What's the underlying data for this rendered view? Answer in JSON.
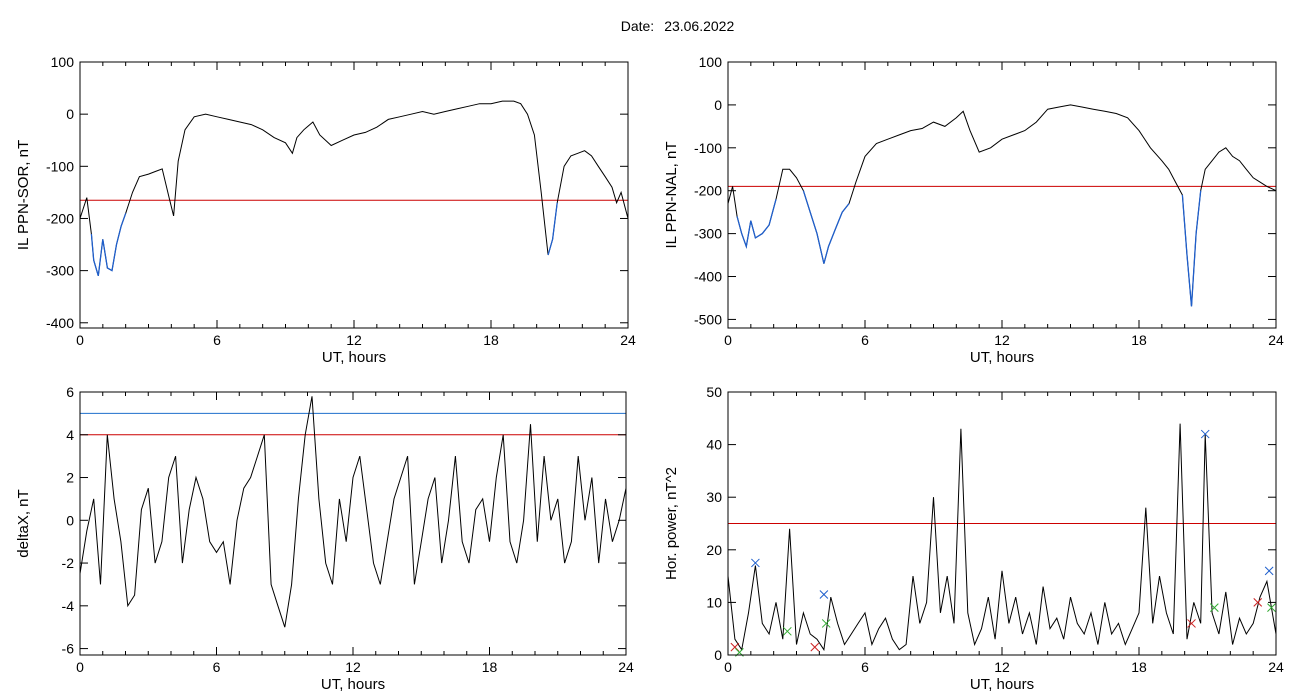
{
  "header": {
    "date_label": "Date:",
    "date_value": "23.06.2022"
  },
  "colors": {
    "trace": "#000000",
    "below_threshold": "#1f5fcc",
    "threshold_red": "#cc0000",
    "threshold_blue": "#1f6fcc",
    "marker_blue": "#1f5fcc",
    "marker_green": "#33aa33",
    "marker_red": "#cc2222"
  },
  "chart_data": [
    {
      "type": "line",
      "xlabel": "UT, hours",
      "ylabel": "IL PPN-SOR, nT",
      "xlim": [
        0,
        24
      ],
      "ylim": [
        -410,
        100
      ],
      "xticks": [
        0,
        6,
        12,
        18,
        24
      ],
      "yticks": [
        100,
        0,
        -100,
        -200,
        -300,
        -400
      ],
      "threshold": -165,
      "series": [
        {
          "x": [
            0,
            0.3,
            0.5,
            0.6,
            0.8,
            1.0,
            1.2,
            1.4,
            1.6,
            1.8,
            2.0,
            2.3,
            2.6,
            3.0,
            3.3,
            3.6,
            3.9,
            4.1,
            4.3,
            4.6,
            5.0,
            5.5,
            6.0,
            6.5,
            7.0,
            7.5,
            8.0,
            8.5,
            9.0,
            9.3,
            9.5,
            9.8,
            10.2,
            10.5,
            11.0,
            11.5,
            12.0,
            12.5,
            13.0,
            13.5,
            14.0,
            14.5,
            15.0,
            15.5,
            16.0,
            16.5,
            17.0,
            17.5,
            18.0,
            18.5,
            19.0,
            19.3,
            19.6,
            19.9,
            20.2,
            20.5,
            20.7,
            20.9,
            21.2,
            21.5,
            21.8,
            22.1,
            22.4,
            22.7,
            23.0,
            23.3,
            23.5,
            23.7,
            24.0
          ],
          "y": [
            -200,
            -160,
            -230,
            -280,
            -310,
            -240,
            -295,
            -300,
            -250,
            -215,
            -190,
            -150,
            -120,
            -115,
            -110,
            -105,
            -160,
            -195,
            -90,
            -30,
            -5,
            0,
            -5,
            -10,
            -15,
            -20,
            -30,
            -45,
            -55,
            -75,
            -45,
            -30,
            -15,
            -40,
            -60,
            -50,
            -40,
            -35,
            -25,
            -10,
            -5,
            0,
            5,
            0,
            5,
            10,
            15,
            20,
            20,
            25,
            25,
            20,
            0,
            -40,
            -150,
            -270,
            -240,
            -170,
            -100,
            -80,
            -75,
            -70,
            -80,
            -100,
            -120,
            -140,
            -170,
            -150,
            -200
          ]
        }
      ]
    },
    {
      "type": "line",
      "xlabel": "UT, hours",
      "ylabel": "IL PPN-NAL, nT",
      "xlim": [
        0,
        24
      ],
      "ylim": [
        -520,
        100
      ],
      "xticks": [
        0,
        6,
        12,
        18,
        24
      ],
      "yticks": [
        100,
        0,
        -100,
        -200,
        -300,
        -400,
        -500
      ],
      "threshold": -190,
      "series": [
        {
          "x": [
            0,
            0.2,
            0.4,
            0.6,
            0.8,
            1.0,
            1.2,
            1.5,
            1.8,
            2.1,
            2.4,
            2.7,
            3.0,
            3.3,
            3.6,
            3.9,
            4.2,
            4.4,
            4.7,
            5.0,
            5.3,
            5.6,
            6.0,
            6.5,
            7.0,
            7.5,
            8.0,
            8.5,
            9.0,
            9.5,
            10.0,
            10.3,
            10.6,
            11.0,
            11.5,
            12.0,
            12.5,
            13.0,
            13.5,
            14.0,
            14.5,
            15.0,
            15.5,
            16.0,
            16.5,
            17.0,
            17.5,
            18.0,
            18.5,
            19.0,
            19.3,
            19.6,
            19.9,
            20.1,
            20.3,
            20.5,
            20.7,
            20.9,
            21.2,
            21.5,
            21.8,
            22.1,
            22.4,
            22.7,
            23.0,
            23.3,
            23.6,
            24.0
          ],
          "y": [
            -230,
            -190,
            -260,
            -300,
            -330,
            -270,
            -310,
            -300,
            -280,
            -220,
            -150,
            -150,
            -170,
            -200,
            -250,
            -300,
            -370,
            -330,
            -290,
            -250,
            -230,
            -180,
            -120,
            -90,
            -80,
            -70,
            -60,
            -55,
            -40,
            -50,
            -30,
            -15,
            -60,
            -110,
            -100,
            -80,
            -70,
            -60,
            -40,
            -10,
            -5,
            0,
            -5,
            -10,
            -15,
            -20,
            -30,
            -60,
            -100,
            -130,
            -150,
            -180,
            -210,
            -350,
            -470,
            -300,
            -200,
            -150,
            -130,
            -110,
            -100,
            -120,
            -130,
            -150,
            -170,
            -180,
            -190,
            -200
          ]
        }
      ]
    },
    {
      "type": "line",
      "xlabel": "UT, hours",
      "ylabel": "deltaX, nT",
      "xlim": [
        0,
        24
      ],
      "ylim": [
        -6.3,
        6
      ],
      "xticks": [
        0,
        6,
        12,
        18,
        24
      ],
      "yticks": [
        6,
        4,
        2,
        0,
        -2,
        -4,
        -6
      ],
      "thresholds": [
        {
          "value": 5.0,
          "color": "blue"
        },
        {
          "value": 4.0,
          "color": "red"
        }
      ],
      "series": [
        {
          "x": [
            0,
            0.3,
            0.6,
            0.9,
            1.2,
            1.5,
            1.8,
            2.1,
            2.4,
            2.7,
            3.0,
            3.3,
            3.6,
            3.9,
            4.2,
            4.5,
            4.8,
            5.1,
            5.4,
            5.7,
            6.0,
            6.3,
            6.6,
            6.9,
            7.2,
            7.5,
            7.8,
            8.1,
            8.4,
            8.7,
            9.0,
            9.3,
            9.6,
            9.9,
            10.2,
            10.5,
            10.8,
            11.1,
            11.4,
            11.7,
            12.0,
            12.3,
            12.6,
            12.9,
            13.2,
            13.5,
            13.8,
            14.1,
            14.4,
            14.7,
            15.0,
            15.3,
            15.6,
            15.9,
            16.2,
            16.5,
            16.8,
            17.1,
            17.4,
            17.7,
            18.0,
            18.3,
            18.6,
            18.9,
            19.2,
            19.5,
            19.8,
            20.1,
            20.4,
            20.7,
            21.0,
            21.3,
            21.6,
            21.9,
            22.2,
            22.5,
            22.8,
            23.1,
            23.4,
            23.7,
            24.0
          ],
          "y": [
            -2.5,
            -0.5,
            1,
            -3,
            4,
            1,
            -1,
            -4,
            -3.5,
            0.5,
            1.5,
            -2,
            -1,
            2,
            3,
            -2,
            0.5,
            2,
            1,
            -1,
            -1.5,
            -1,
            -3,
            0,
            1.5,
            2,
            3,
            4,
            -3,
            -4,
            -5,
            -3,
            1,
            4,
            5.8,
            1,
            -2,
            -3,
            1,
            -1,
            2,
            3,
            0.5,
            -2,
            -3,
            -1,
            1,
            2,
            3,
            -3,
            -1,
            1,
            2,
            -2,
            0,
            3,
            -1,
            -2,
            0.5,
            1,
            -1,
            2,
            4,
            -1,
            -2,
            0,
            4.5,
            -1,
            3,
            0,
            1,
            -2,
            -1,
            3,
            0,
            2,
            -2,
            1,
            -1,
            0,
            1.5
          ]
        }
      ]
    },
    {
      "type": "line",
      "xlabel": "UT, hours",
      "ylabel": "Hor. power, nT^2",
      "xlim": [
        0,
        24
      ],
      "ylim": [
        0,
        50
      ],
      "xticks": [
        0,
        6,
        12,
        18,
        24
      ],
      "yticks": [
        50,
        40,
        30,
        20,
        10,
        0
      ],
      "threshold": 25,
      "series": [
        {
          "x": [
            0,
            0.3,
            0.6,
            0.9,
            1.2,
            1.5,
            1.8,
            2.1,
            2.4,
            2.7,
            3.0,
            3.3,
            3.6,
            3.9,
            4.2,
            4.5,
            4.8,
            5.1,
            5.4,
            5.7,
            6.0,
            6.3,
            6.6,
            6.9,
            7.2,
            7.5,
            7.8,
            8.1,
            8.4,
            8.7,
            9.0,
            9.3,
            9.6,
            9.9,
            10.2,
            10.5,
            10.8,
            11.1,
            11.4,
            11.7,
            12.0,
            12.3,
            12.6,
            12.9,
            13.2,
            13.5,
            13.8,
            14.1,
            14.4,
            14.7,
            15.0,
            15.3,
            15.6,
            15.9,
            16.2,
            16.5,
            16.8,
            17.1,
            17.4,
            17.7,
            18.0,
            18.3,
            18.6,
            18.9,
            19.2,
            19.5,
            19.8,
            20.1,
            20.4,
            20.7,
            20.9,
            21.2,
            21.5,
            21.8,
            22.1,
            22.4,
            22.7,
            23.0,
            23.3,
            23.6,
            24.0
          ],
          "y": [
            15,
            3,
            1,
            8,
            17,
            6,
            4,
            10,
            3,
            24,
            2,
            8,
            4,
            3,
            1,
            11,
            6,
            2,
            4,
            6,
            8,
            2,
            5,
            7,
            3,
            1,
            2,
            15,
            6,
            10,
            30,
            8,
            15,
            6,
            43,
            8,
            2,
            5,
            11,
            3,
            16,
            6,
            11,
            4,
            8,
            2,
            13,
            5,
            7,
            3,
            11,
            6,
            4,
            8,
            2,
            10,
            4,
            6,
            2,
            5,
            8,
            28,
            6,
            15,
            8,
            4,
            44,
            3,
            10,
            6,
            42,
            8,
            4,
            12,
            2,
            7,
            4,
            6,
            11,
            14,
            4
          ]
        }
      ],
      "markers": [
        {
          "x": 0.3,
          "y": 1.5,
          "color": "red"
        },
        {
          "x": 0.5,
          "y": 0.5,
          "color": "green"
        },
        {
          "x": 1.2,
          "y": 17.5,
          "color": "blue"
        },
        {
          "x": 2.6,
          "y": 4.5,
          "color": "green"
        },
        {
          "x": 3.8,
          "y": 1.5,
          "color": "red"
        },
        {
          "x": 4.2,
          "y": 11.5,
          "color": "blue"
        },
        {
          "x": 4.3,
          "y": 6,
          "color": "green"
        },
        {
          "x": 20.3,
          "y": 6,
          "color": "red"
        },
        {
          "x": 20.9,
          "y": 42,
          "color": "blue"
        },
        {
          "x": 21.3,
          "y": 9,
          "color": "green"
        },
        {
          "x": 23.2,
          "y": 10,
          "color": "red"
        },
        {
          "x": 23.7,
          "y": 16,
          "color": "blue"
        },
        {
          "x": 23.8,
          "y": 9,
          "color": "green"
        }
      ]
    }
  ]
}
